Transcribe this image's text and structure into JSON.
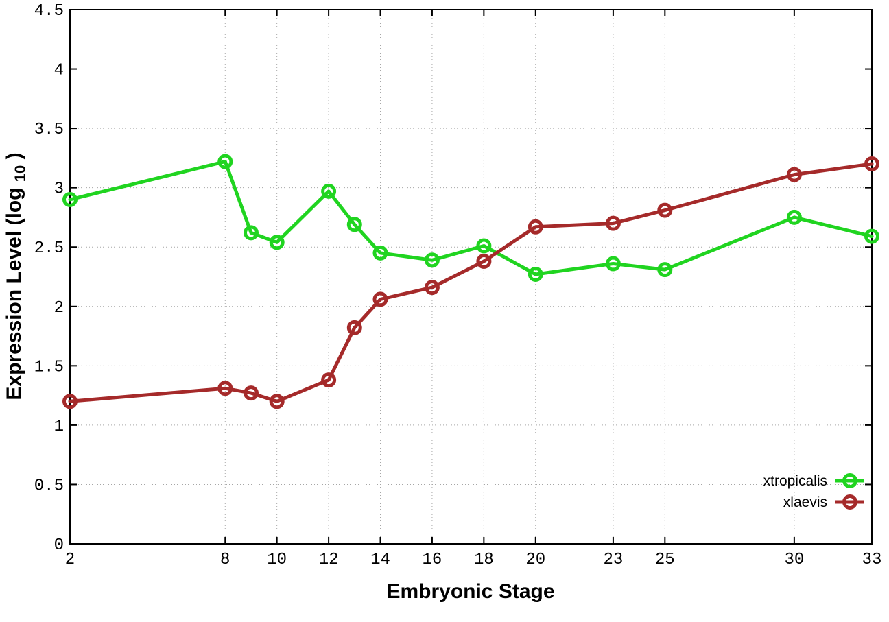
{
  "chart_data": {
    "type": "line",
    "title": "",
    "xlabel": "Embryonic Stage",
    "ylabel": "Expression Level (log10)",
    "ylabel_parts": {
      "main": "Expression Level (log",
      "sub": "10",
      "close": ")"
    },
    "x": [
      2,
      8,
      9,
      10,
      12,
      13,
      14,
      16,
      18,
      20,
      23,
      25,
      30,
      33
    ],
    "series": [
      {
        "name": "xtropicalis",
        "color": "#20d420",
        "values": [
          2.9,
          3.22,
          2.62,
          2.54,
          2.97,
          2.69,
          2.45,
          2.39,
          2.51,
          2.27,
          2.36,
          2.31,
          2.75,
          2.59
        ]
      },
      {
        "name": "xlaevis",
        "color": "#a52a2a",
        "values": [
          1.2,
          1.31,
          1.27,
          1.2,
          1.38,
          1.82,
          2.06,
          2.16,
          2.38,
          2.67,
          2.7,
          2.81,
          3.11,
          3.2
        ]
      }
    ],
    "xticks": [
      2,
      8,
      10,
      12,
      14,
      16,
      18,
      20,
      23,
      25,
      30,
      33
    ],
    "yticks": [
      0,
      0.5,
      1,
      1.5,
      2,
      2.5,
      3,
      3.5,
      4,
      4.5
    ],
    "xlim": [
      2,
      33
    ],
    "ylim": [
      0,
      4.5
    ],
    "grid": true,
    "marker": "open-circle",
    "legend_position": "bottom-right"
  },
  "colors": {
    "grid": "#a6a6a6",
    "axis": "#000000",
    "text": "#000000",
    "background": "#ffffff"
  }
}
